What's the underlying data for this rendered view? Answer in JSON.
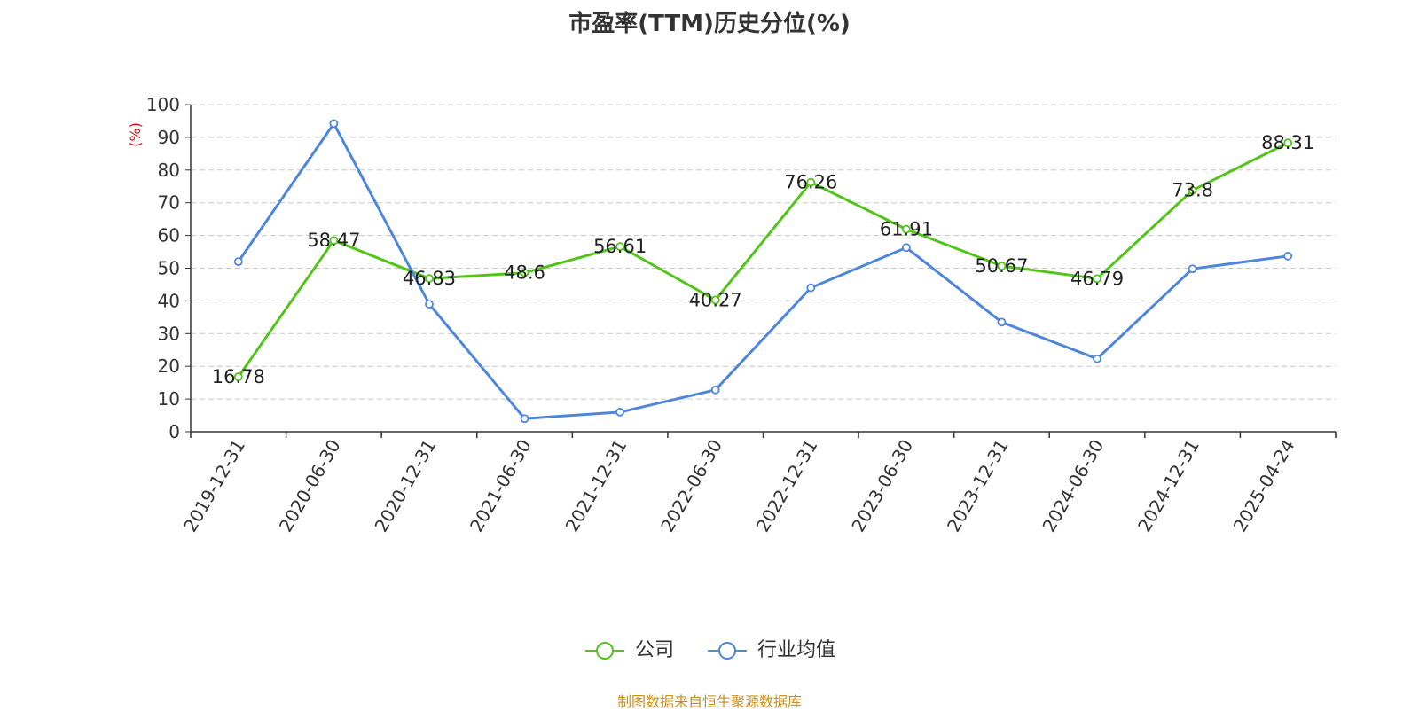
{
  "chart_data": {
    "type": "line",
    "title": "市盈率(TTM)历史分位(%)",
    "ylabel": "(%)",
    "ylim": [
      0,
      100
    ],
    "yticks": [
      "0",
      "10",
      "20",
      "30",
      "40",
      "50",
      "60",
      "70",
      "80",
      "90",
      "100"
    ],
    "categories": [
      "2019-12-31",
      "2020-06-30",
      "2020-12-31",
      "2021-06-30",
      "2021-12-31",
      "2022-06-30",
      "2022-12-31",
      "2023-06-30",
      "2023-12-31",
      "2024-06-30",
      "2024-12-31",
      "2025-04-24"
    ],
    "grid": true,
    "legend_position": "bottom-center",
    "series": [
      {
        "name": "公司",
        "color": "#52c41a",
        "values": [
          16.78,
          58.47,
          46.83,
          48.6,
          56.61,
          40.27,
          76.26,
          61.91,
          50.67,
          46.79,
          73.8,
          88.31
        ],
        "labels": [
          "16.78",
          "58.47",
          "46.83",
          "48.6",
          "56.61",
          "40.27",
          "76.26",
          "61.91",
          "50.67",
          "46.79",
          "73.8",
          "88.31"
        ]
      },
      {
        "name": "行业均值",
        "color": "#4e86dc",
        "values": [
          52,
          94.2,
          39,
          4,
          6,
          12.8,
          44,
          56.3,
          33.5,
          22.3,
          49.8,
          53.7
        ]
      }
    ]
  },
  "ylabel_color": "#e8000b",
  "source": {
    "text": "制图数据来自恒生聚源数据库",
    "color": "#c8901c"
  }
}
